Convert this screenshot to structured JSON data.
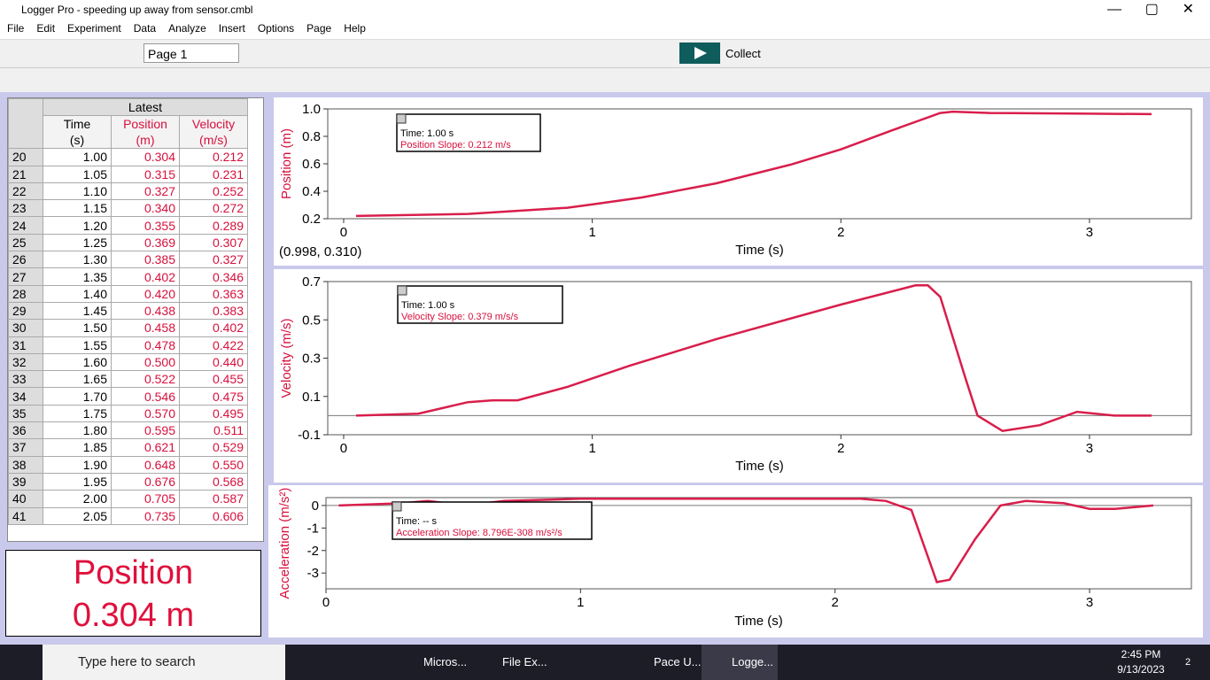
{
  "window": {
    "title": "Logger Pro - speeding up away from sensor.cmbl"
  },
  "menu": [
    "File",
    "Edit",
    "Experiment",
    "Data",
    "Analyze",
    "Insert",
    "Options",
    "Page",
    "Help"
  ],
  "toolbar": {
    "page": "Page 1",
    "collect": "Collect"
  },
  "table": {
    "group": "Latest",
    "headers": [
      [
        "Time",
        "(s)"
      ],
      [
        "Position",
        "(m)"
      ],
      [
        "Velocity",
        "(m/s)"
      ]
    ],
    "rows": [
      [
        "20",
        "1.00",
        "0.304",
        "0.212"
      ],
      [
        "21",
        "1.05",
        "0.315",
        "0.231"
      ],
      [
        "22",
        "1.10",
        "0.327",
        "0.252"
      ],
      [
        "23",
        "1.15",
        "0.340",
        "0.272"
      ],
      [
        "24",
        "1.20",
        "0.355",
        "0.289"
      ],
      [
        "25",
        "1.25",
        "0.369",
        "0.307"
      ],
      [
        "26",
        "1.30",
        "0.385",
        "0.327"
      ],
      [
        "27",
        "1.35",
        "0.402",
        "0.346"
      ],
      [
        "28",
        "1.40",
        "0.420",
        "0.363"
      ],
      [
        "29",
        "1.45",
        "0.438",
        "0.383"
      ],
      [
        "30",
        "1.50",
        "0.458",
        "0.402"
      ],
      [
        "31",
        "1.55",
        "0.478",
        "0.422"
      ],
      [
        "32",
        "1.60",
        "0.500",
        "0.440"
      ],
      [
        "33",
        "1.65",
        "0.522",
        "0.455"
      ],
      [
        "34",
        "1.70",
        "0.546",
        "0.475"
      ],
      [
        "35",
        "1.75",
        "0.570",
        "0.495"
      ],
      [
        "36",
        "1.80",
        "0.595",
        "0.511"
      ],
      [
        "37",
        "1.85",
        "0.621",
        "0.529"
      ],
      [
        "38",
        "1.90",
        "0.648",
        "0.550"
      ],
      [
        "39",
        "1.95",
        "0.676",
        "0.568"
      ],
      [
        "40",
        "2.00",
        "0.705",
        "0.587"
      ],
      [
        "41",
        "2.05",
        "0.735",
        "0.606"
      ]
    ]
  },
  "meter": {
    "label": "Position",
    "reading": "0.304 m"
  },
  "chart_data": [
    {
      "type": "line",
      "x_label": "Time (s)",
      "y_label": "Position (m)",
      "color": "#d81e4b",
      "annotation": [
        "Time: 1.00 s",
        "Position  Slope: 0.212 m/s"
      ],
      "readout": "(0.998, 0.310)",
      "x": [
        0.05,
        0.5,
        0.9,
        1.0,
        1.2,
        1.5,
        1.8,
        2.0,
        2.2,
        2.4,
        2.45,
        2.6,
        3.0,
        3.25
      ],
      "values": [
        0.22,
        0.235,
        0.28,
        0.304,
        0.355,
        0.458,
        0.595,
        0.705,
        0.84,
        0.97,
        0.98,
        0.97,
        0.965,
        0.962
      ],
      "xlim": [
        -0.064,
        3.41
      ],
      "ylim": [
        0.2,
        1.0
      ],
      "xticks": [
        0,
        1,
        2,
        3
      ],
      "yticks": [
        0.2,
        0.4,
        0.6,
        0.8,
        {
          "value": 1,
          "label": "1.0"
        }
      ]
    },
    {
      "type": "line",
      "x_label": "Time (s)",
      "y_label": "Velocity (m/s)",
      "color": "#d81e4b",
      "annotation": [
        "Time: 1.00 s",
        "Velocity  Slope: 0.379 m/s/s"
      ],
      "x": [
        0.05,
        0.3,
        0.5,
        0.6,
        0.7,
        0.9,
        1.15,
        1.5,
        2.0,
        2.3,
        2.35,
        2.4,
        2.5,
        2.55,
        2.65,
        2.8,
        2.95,
        3.1,
        3.25
      ],
      "values": [
        0.0,
        0.01,
        0.07,
        0.08,
        0.08,
        0.15,
        0.26,
        0.4,
        0.58,
        0.68,
        0.68,
        0.62,
        0.2,
        0.0,
        -0.08,
        -0.05,
        0.02,
        0.0,
        0.0
      ],
      "xlim": [
        -0.064,
        3.41
      ],
      "ylim": [
        -0.1,
        0.7
      ],
      "xticks": [
        0,
        1,
        2,
        3
      ],
      "yticks": [
        -0.1,
        0.1,
        0.3,
        0.5,
        0.7
      ]
    },
    {
      "type": "line",
      "x_label": "Time (s)",
      "y_label": "Acceleration (m/s²)",
      "color": "#d81e4b",
      "annotation": [
        "Time: -- s",
        "Acceleration  Slope: 8.796E-308 m/s²/s"
      ],
      "x": [
        0.05,
        0.3,
        0.4,
        0.55,
        0.7,
        1.0,
        2.1,
        2.2,
        2.3,
        2.4,
        2.45,
        2.55,
        2.65,
        2.75,
        2.9,
        3.0,
        3.1,
        3.25
      ],
      "values": [
        0.0,
        0.1,
        0.2,
        0.0,
        0.2,
        0.3,
        0.3,
        0.2,
        -0.2,
        -3.4,
        -3.3,
        -1.5,
        0.0,
        0.2,
        0.1,
        -0.15,
        -0.15,
        0.0
      ],
      "xlim": [
        0,
        3.4
      ],
      "ylim": [
        -3.7,
        0.35
      ],
      "xticks": [
        0,
        1,
        2,
        3
      ],
      "yticks": [
        0,
        -1,
        -2,
        -3
      ]
    }
  ],
  "taskbar": {
    "search": "Type here to search",
    "apps": [
      "Micros...",
      "File Ex...",
      "Pace U...",
      "Logge..."
    ],
    "time": "2:45 PM",
    "date": "9/13/2023",
    "notifications": "2"
  }
}
